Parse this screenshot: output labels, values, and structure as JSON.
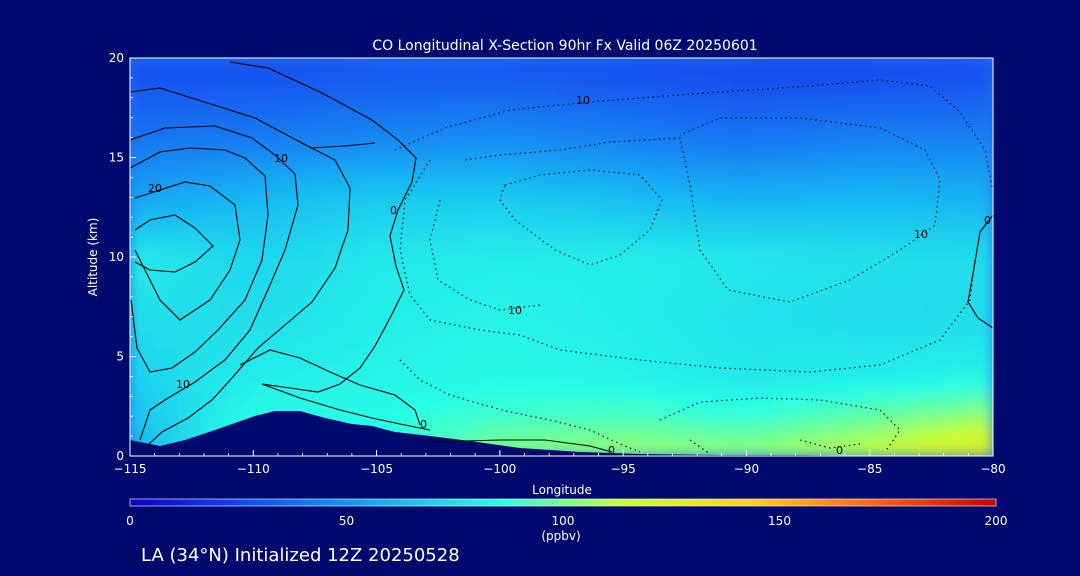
{
  "chart_data": {
    "type": "heatmap",
    "title": "CO Longitudinal X-Section 90hr  Fx Valid 06Z 20250601",
    "xlabel": "Longitude",
    "ylabel": "Altitude (km)",
    "xlim": [
      -115,
      -80
    ],
    "ylim": [
      0,
      20
    ],
    "x_ticks": [
      -115,
      -110,
      -105,
      -100,
      -95,
      -90,
      -85,
      -80
    ],
    "x_tick_labels": [
      "−115",
      "−110",
      "−105",
      "−100",
      "−95",
      "−90",
      "−85",
      "−80"
    ],
    "y_ticks": [
      0,
      5,
      10,
      15,
      20
    ],
    "y_tick_labels": [
      "0",
      "5",
      "10",
      "15",
      "20"
    ],
    "colorbar": {
      "min": 0,
      "max": 200,
      "ticks": [
        0,
        50,
        100,
        150,
        200
      ],
      "tick_labels": [
        "0",
        "50",
        "100",
        "150",
        "200"
      ],
      "label": "(ppbv)",
      "stops": [
        "#0a00c8",
        "#1450f0",
        "#14aaf5",
        "#28ffe6",
        "#c8ff32",
        "#ffd21e",
        "#ff6414",
        "#c80000"
      ]
    },
    "field_sample_ppbv": {
      "altitudes_km": [
        0.5,
        2,
        4,
        7,
        10,
        13,
        16,
        19
      ],
      "longitudes": [
        -115,
        -110,
        -105,
        -100,
        -95,
        -90,
        -85,
        -80
      ],
      "values": [
        [
          60,
          90,
          85,
          100,
          104,
          102,
          112,
          128
        ],
        [
          65,
          85,
          85,
          90,
          92,
          88,
          96,
          106
        ],
        [
          70,
          80,
          82,
          84,
          82,
          78,
          80,
          82
        ],
        [
          75,
          74,
          80,
          82,
          80,
          76,
          74,
          74
        ],
        [
          80,
          72,
          78,
          80,
          80,
          78,
          76,
          74
        ],
        [
          55,
          62,
          68,
          68,
          64,
          60,
          62,
          60
        ],
        [
          40,
          42,
          46,
          48,
          44,
          40,
          44,
          44
        ],
        [
          30,
          30,
          32,
          32,
          30,
          28,
          28,
          30
        ]
      ]
    },
    "anomaly_contours": {
      "solid_positive": [
        0,
        10,
        20,
        30
      ],
      "dotted_negative": [
        -10
      ],
      "contour_labels": [
        "10",
        "20",
        "10",
        "0",
        "0",
        "0",
        "10",
        "10",
        "10",
        "0",
        "0"
      ]
    },
    "terrain_note": "terrain silhouette (dark blue) below the field"
  },
  "footer": {
    "location_init": "LA (34°N) Initialized 12Z 20250528"
  }
}
